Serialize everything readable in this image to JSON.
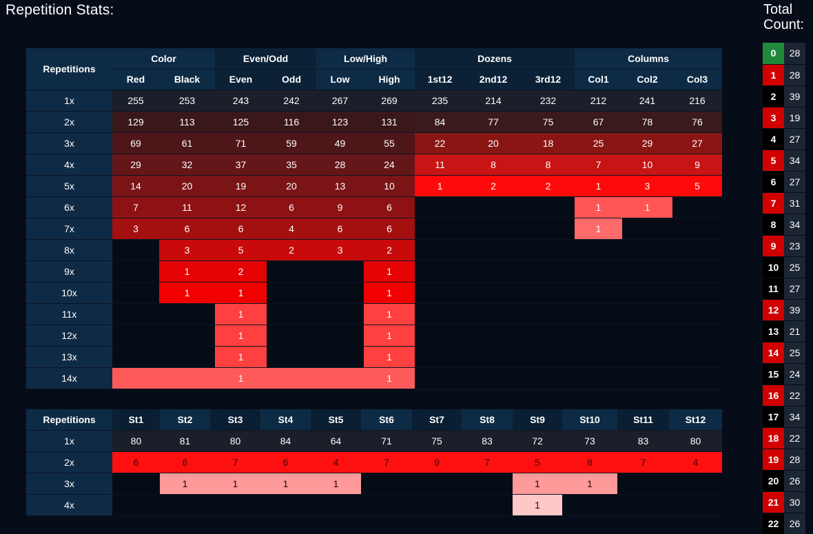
{
  "title": "Repetition Stats:",
  "side_title_line1": "Total",
  "side_title_line2": "Count:",
  "main": {
    "rep_header": "Repetitions",
    "groups": [
      "Color",
      "Even/Odd",
      "Low/High",
      "Dozens",
      "Columns"
    ],
    "columns": [
      "Red",
      "Black",
      "Even",
      "Odd",
      "Low",
      "High",
      "1st12",
      "2nd12",
      "3rd12",
      "Col1",
      "Col2",
      "Col3"
    ],
    "rows": [
      {
        "label": "1x",
        "values": [
          "255",
          "253",
          "243",
          "242",
          "267",
          "269",
          "235",
          "214",
          "232",
          "212",
          "241",
          "216"
        ]
      },
      {
        "label": "2x",
        "values": [
          "129",
          "113",
          "125",
          "116",
          "123",
          "131",
          "84",
          "77",
          "75",
          "67",
          "78",
          "76"
        ]
      },
      {
        "label": "3x",
        "values": [
          "69",
          "61",
          "71",
          "59",
          "49",
          "55",
          "22",
          "20",
          "18",
          "25",
          "29",
          "27"
        ]
      },
      {
        "label": "4x",
        "values": [
          "29",
          "32",
          "37",
          "35",
          "28",
          "24",
          "11",
          "8",
          "8",
          "7",
          "10",
          "9"
        ]
      },
      {
        "label": "5x",
        "values": [
          "14",
          "20",
          "19",
          "20",
          "13",
          "10",
          "1",
          "2",
          "2",
          "1",
          "3",
          "5"
        ]
      },
      {
        "label": "6x",
        "values": [
          "7",
          "11",
          "12",
          "6",
          "9",
          "6",
          "",
          "",
          "",
          "1",
          "1",
          ""
        ]
      },
      {
        "label": "7x",
        "values": [
          "3",
          "6",
          "6",
          "4",
          "6",
          "6",
          "",
          "",
          "",
          "1",
          "",
          ""
        ]
      },
      {
        "label": "8x",
        "values": [
          "",
          "3",
          "5",
          "2",
          "3",
          "2",
          "",
          "",
          "",
          "",
          "",
          ""
        ]
      },
      {
        "label": "9x",
        "values": [
          "",
          "1",
          "2",
          "",
          "",
          "1",
          "",
          "",
          "",
          "",
          "",
          ""
        ]
      },
      {
        "label": "10x",
        "values": [
          "",
          "1",
          "1",
          "",
          "",
          "1",
          "",
          "",
          "",
          "",
          "",
          ""
        ]
      },
      {
        "label": "11x",
        "values": [
          "",
          "",
          "1",
          "",
          "",
          "1",
          "",
          "",
          "",
          "",
          "",
          ""
        ]
      },
      {
        "label": "12x",
        "values": [
          "",
          "",
          "1",
          "",
          "",
          "1",
          "",
          "",
          "",
          "",
          "",
          ""
        ]
      },
      {
        "label": "13x",
        "values": [
          "",
          "",
          "1",
          "",
          "",
          "1",
          "",
          "",
          "",
          "",
          "",
          ""
        ]
      },
      {
        "label": "14x",
        "values": [
          "",
          "",
          "1",
          "",
          "",
          "1",
          "",
          "",
          "",
          "",
          "",
          ""
        ]
      }
    ]
  },
  "streets": {
    "rep_header": "Repetitions",
    "columns": [
      "St1",
      "St2",
      "St3",
      "St4",
      "St5",
      "St6",
      "St7",
      "St8",
      "St9",
      "St10",
      "St11",
      "St12"
    ],
    "rows": [
      {
        "label": "1x",
        "values": [
          "80",
          "81",
          "80",
          "84",
          "64",
          "71",
          "75",
          "83",
          "72",
          "73",
          "83",
          "80"
        ]
      },
      {
        "label": "2x",
        "values": [
          "6",
          "6",
          "7",
          "6",
          "4",
          "7",
          "9",
          "7",
          "5",
          "8",
          "7",
          "4"
        ]
      },
      {
        "label": "3x",
        "values": [
          "",
          "1",
          "1",
          "1",
          "1",
          "",
          "",
          "",
          "1",
          "1",
          "",
          ""
        ]
      },
      {
        "label": "4x",
        "values": [
          "",
          "",
          "",
          "",
          "",
          "",
          "",
          "",
          "1",
          "",
          "",
          ""
        ]
      }
    ]
  },
  "total_count": [
    {
      "num": "0",
      "count": "28",
      "color": "green"
    },
    {
      "num": "1",
      "count": "28",
      "color": "red"
    },
    {
      "num": "2",
      "count": "39",
      "color": "black"
    },
    {
      "num": "3",
      "count": "19",
      "color": "red"
    },
    {
      "num": "4",
      "count": "27",
      "color": "black"
    },
    {
      "num": "5",
      "count": "34",
      "color": "red"
    },
    {
      "num": "6",
      "count": "27",
      "color": "black"
    },
    {
      "num": "7",
      "count": "31",
      "color": "red"
    },
    {
      "num": "8",
      "count": "34",
      "color": "black"
    },
    {
      "num": "9",
      "count": "23",
      "color": "red"
    },
    {
      "num": "10",
      "count": "25",
      "color": "black"
    },
    {
      "num": "11",
      "count": "27",
      "color": "black"
    },
    {
      "num": "12",
      "count": "39",
      "color": "red"
    },
    {
      "num": "13",
      "count": "21",
      "color": "black"
    },
    {
      "num": "14",
      "count": "25",
      "color": "red"
    },
    {
      "num": "15",
      "count": "24",
      "color": "black"
    },
    {
      "num": "16",
      "count": "22",
      "color": "red"
    },
    {
      "num": "17",
      "count": "34",
      "color": "black"
    },
    {
      "num": "18",
      "count": "22",
      "color": "red"
    },
    {
      "num": "19",
      "count": "28",
      "color": "red"
    },
    {
      "num": "20",
      "count": "26",
      "color": "black"
    },
    {
      "num": "21",
      "count": "30",
      "color": "red"
    },
    {
      "num": "22",
      "count": "26",
      "color": "black"
    }
  ],
  "colors": {
    "page_bg": "#070d18",
    "header_bg": "#0e2b45",
    "row_label_bg": "#0f2a45",
    "roulette_green": "#1e8a3a",
    "roulette_red": "#d10000",
    "roulette_black": "#000000"
  }
}
